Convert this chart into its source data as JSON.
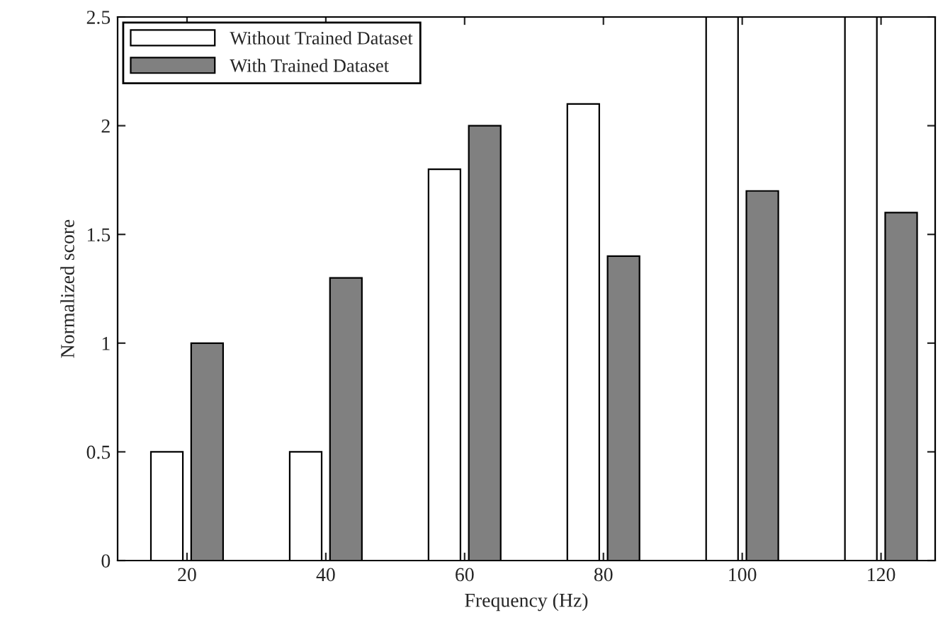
{
  "chart_data": {
    "type": "bar",
    "xlabel": "Frequency (Hz)",
    "ylabel": "Normalized score",
    "categories": [
      "20",
      "40",
      "60",
      "80",
      "100",
      "120"
    ],
    "series": [
      {
        "name": "Without Trained Dataset",
        "color": "#ffffff",
        "values": [
          0.5,
          0.5,
          1.8,
          2.1,
          2.5,
          2.5
        ]
      },
      {
        "name": "With Trained Dataset",
        "color": "#808080",
        "values": [
          1.0,
          1.3,
          2.0,
          1.4,
          1.7,
          1.6
        ]
      }
    ],
    "ylim": [
      0,
      2.5
    ],
    "yticks": [
      0,
      0.5,
      1,
      1.5,
      2,
      2.5
    ],
    "grid": false,
    "legend": "top left"
  }
}
